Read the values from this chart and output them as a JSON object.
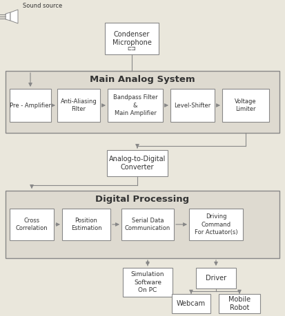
{
  "bg_color": "#eae7dc",
  "box_color": "#ffffff",
  "box_edge": "#888888",
  "text_color": "#333333",
  "large_box_bg": "#dedad0",
  "figsize": [
    4.13,
    4.59
  ],
  "dpi": 100,
  "mas_label": "Main Analog System",
  "dp_label": "Digital Processing",
  "cm_label": "Condenser\nMicrophone",
  "adc_label": "Analog-to-Digital\nConverter",
  "boxes_mas": [
    "Pre - Amplifier",
    "Anti-Aliasing\nFilter",
    "Bandpass Filter\n&\nMain Amplifier",
    "Level-Shifter",
    "Voltage\nLimiter"
  ],
  "boxes_dp": [
    "Cross\nCorrelation",
    "Position\nEstimation",
    "Serial Data\nCommunication",
    "Driving\nCommand\nFor Actuator(s)"
  ],
  "sim_label": "Simulation\nSoftware\nOn PC",
  "driver_label": "Driver",
  "webcam_label": "Webcam",
  "mobile_label": "Mobile\nRobot",
  "sound_label": "Sound source"
}
